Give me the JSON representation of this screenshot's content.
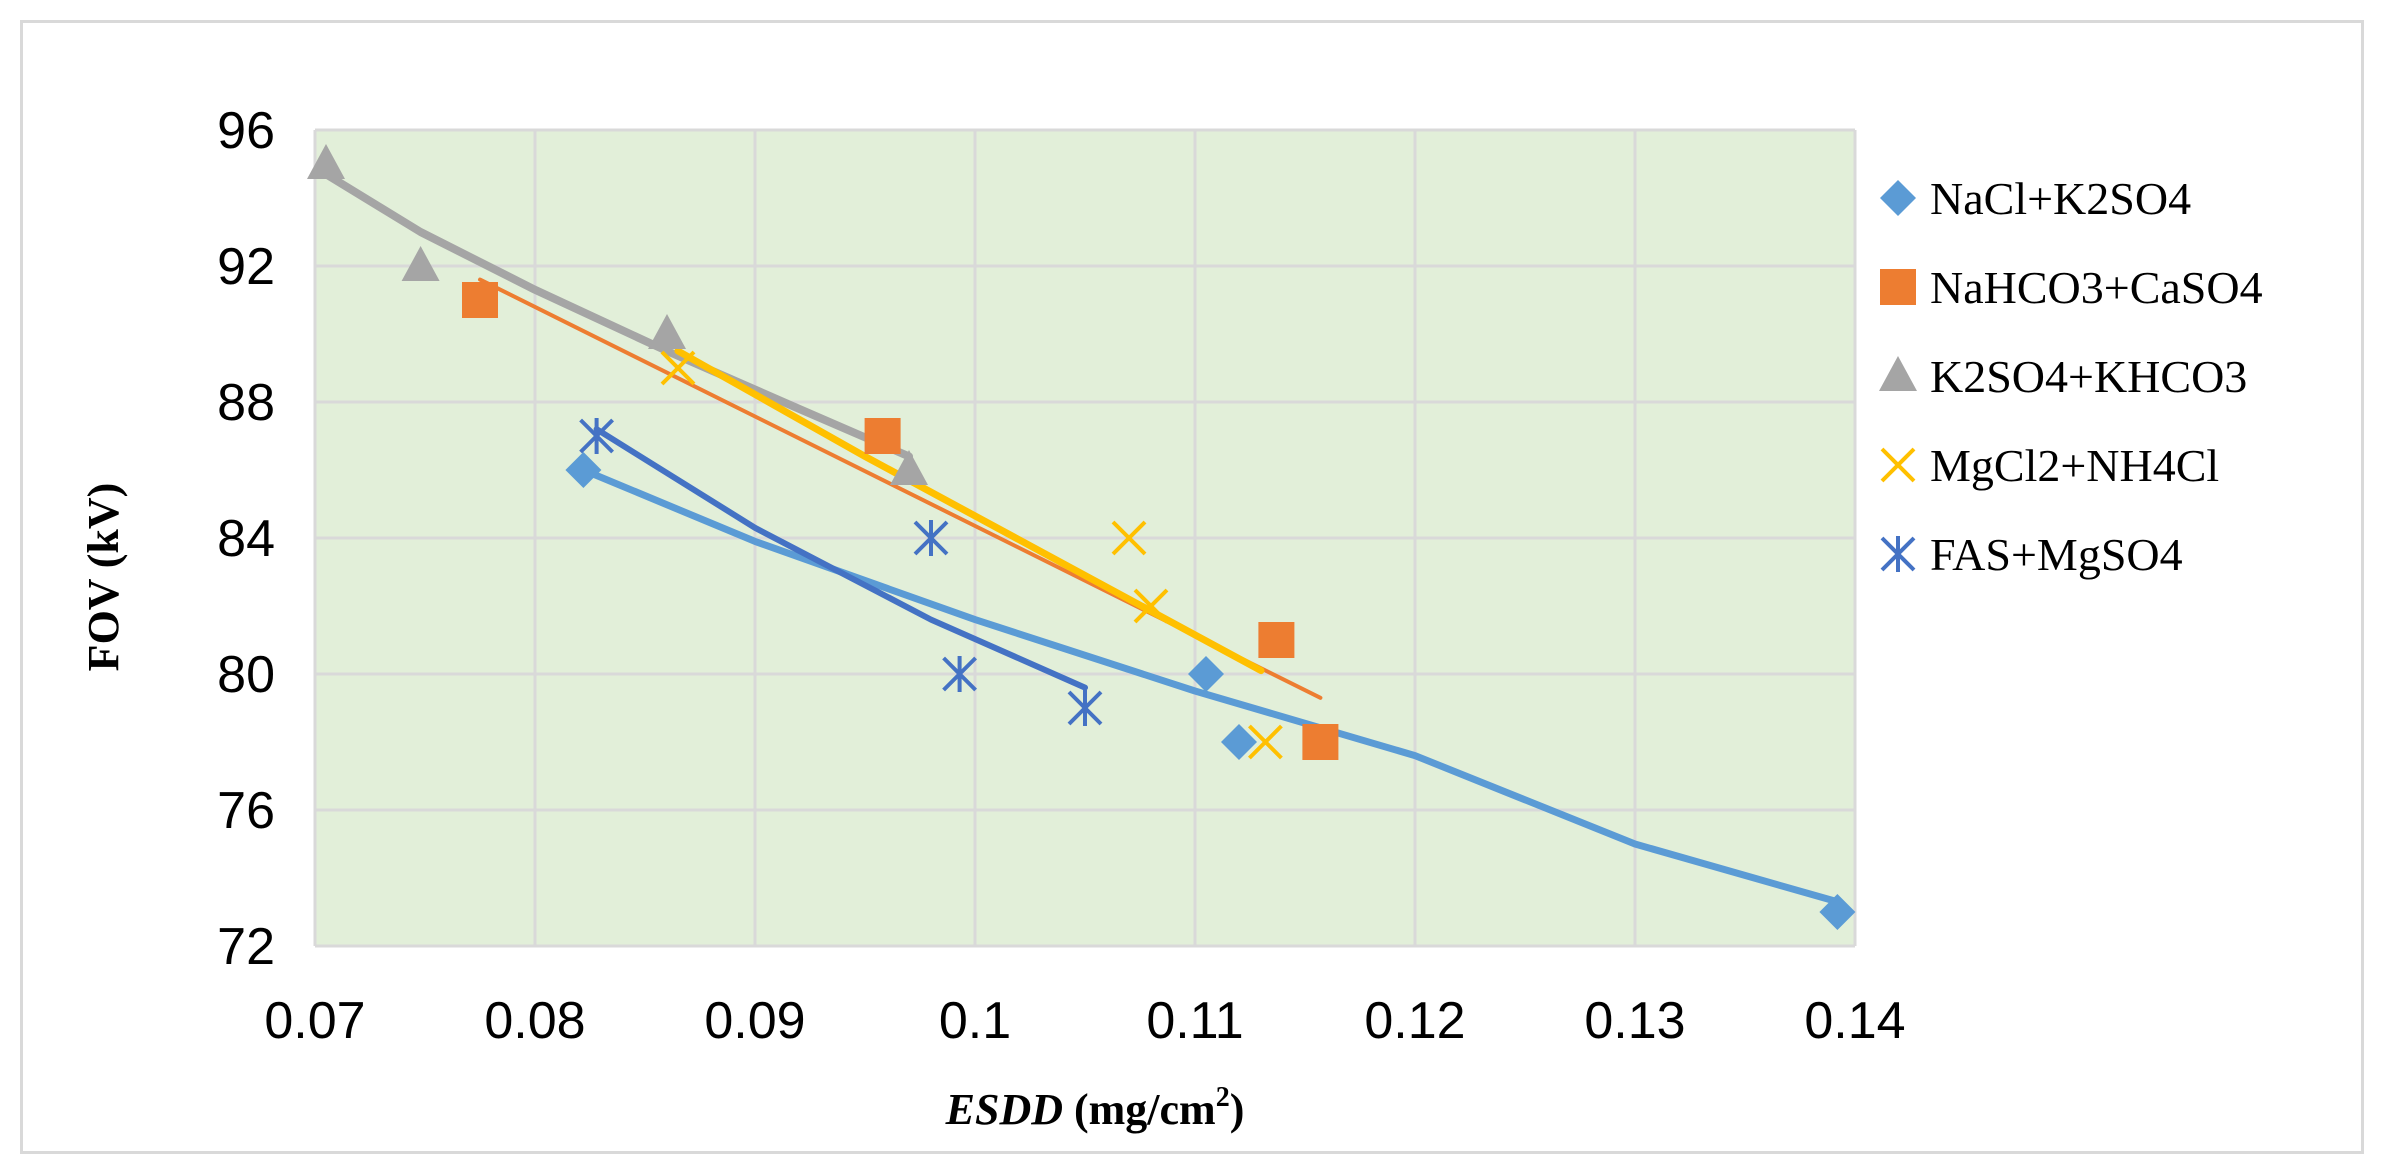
{
  "chart_data": {
    "type": "scatter",
    "title": "",
    "xlabel_italic": "ESDD",
    "xlabel_units": " (mg/cm",
    "xlabel_sup": "2",
    "xlabel_close": ")",
    "ylabel": "FOV (kV)",
    "xlim": [
      0.07,
      0.14
    ],
    "ylim": [
      72,
      96
    ],
    "x_ticks": [
      "0.07",
      "0.08",
      "0.09",
      "0.1",
      "0.11",
      "0.12",
      "0.13",
      "0.14"
    ],
    "x_tick_values": [
      0.07,
      0.08,
      0.09,
      0.1,
      0.11,
      0.12,
      0.13,
      0.14
    ],
    "y_ticks": [
      "72",
      "76",
      "80",
      "84",
      "88",
      "92",
      "96"
    ],
    "y_tick_values": [
      72,
      76,
      80,
      84,
      88,
      92,
      96
    ],
    "grid": true,
    "plot_background": "#e2efd9",
    "grid_color": "#d9d9d9",
    "legend_position": "right",
    "series": [
      {
        "name": "NaCl+K2SO4",
        "marker": "diamond",
        "color": "#5b9bd5",
        "x": [
          0.0822,
          0.1105,
          0.112,
          0.1392
        ],
        "y": [
          86,
          80,
          78,
          73
        ],
        "trend": {
          "type": "power",
          "color": "#5b9bd5",
          "width": 7,
          "x": [
            0.0822,
            0.09,
            0.1,
            0.11,
            0.12,
            0.13,
            0.1392
          ],
          "y": [
            86.0,
            83.9,
            81.6,
            79.5,
            77.6,
            75.0,
            73.3
          ]
        }
      },
      {
        "name": "NaHCO3+CaSO4",
        "marker": "square",
        "color": "#ed7d31",
        "x": [
          0.0775,
          0.0958,
          0.1137,
          0.1157
        ],
        "y": [
          91,
          87,
          81,
          78
        ],
        "trend": {
          "type": "linear",
          "color": "#ed7d31",
          "width": 4,
          "x": [
            0.0775,
            0.1157
          ],
          "y": [
            91.6,
            79.3
          ]
        }
      },
      {
        "name": "K2SO4+KHCO3",
        "marker": "triangle",
        "color": "#a5a5a5",
        "x": [
          0.0705,
          0.0748,
          0.086,
          0.097
        ],
        "y": [
          95,
          92,
          90,
          86
        ],
        "trend": {
          "type": "power",
          "color": "#a5a5a5",
          "width": 8,
          "x": [
            0.0705,
            0.0748,
            0.08,
            0.086,
            0.092,
            0.097
          ],
          "y": [
            94.7,
            93.0,
            91.3,
            89.5,
            87.8,
            86.4
          ]
        }
      },
      {
        "name": "MgCl2+NH4Cl",
        "marker": "x",
        "color": "#ffc000",
        "x": [
          0.0865,
          0.107,
          0.108,
          0.1132
        ],
        "y": [
          89,
          84,
          82,
          78
        ],
        "trend": {
          "type": "power",
          "color": "#ffc000",
          "width": 7,
          "x": [
            0.0865,
            0.095,
            0.105,
            0.113
          ],
          "y": [
            89.5,
            86.4,
            82.9,
            80.1
          ]
        }
      },
      {
        "name": "FAS+MgSO4",
        "marker": "star",
        "color": "#4472c4",
        "x": [
          0.0828,
          0.098,
          0.0993,
          0.105
        ],
        "y": [
          87,
          84,
          80,
          79
        ],
        "trend": {
          "type": "power",
          "color": "#4472c4",
          "width": 6,
          "x": [
            0.0828,
            0.09,
            0.098,
            0.105
          ],
          "y": [
            87.2,
            84.3,
            81.6,
            79.6
          ]
        }
      }
    ]
  }
}
